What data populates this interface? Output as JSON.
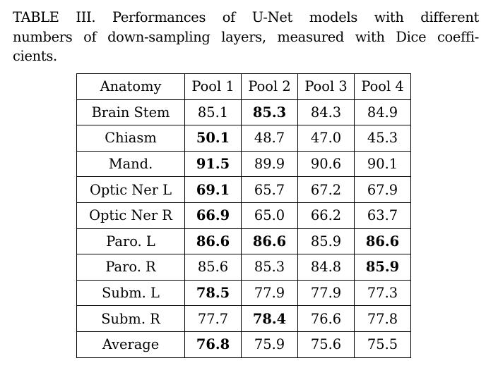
{
  "caption": {
    "line1": "TABLE III. Performances of U-Net models with different",
    "line2": "numbers of down-sampling layers, measured with Dice coeffi-",
    "line3": "cients."
  },
  "table": {
    "headers": [
      "Anatomy",
      "Pool 1",
      "Pool 2",
      "Pool 3",
      "Pool 4"
    ],
    "rows": [
      {
        "label": "Brain Stem",
        "values": [
          "85.1",
          "85.3",
          "84.3",
          "84.9"
        ],
        "bold": [
          false,
          true,
          false,
          false
        ]
      },
      {
        "label": "Chiasm",
        "values": [
          "50.1",
          "48.7",
          "47.0",
          "45.3"
        ],
        "bold": [
          true,
          false,
          false,
          false
        ]
      },
      {
        "label": "Mand.",
        "values": [
          "91.5",
          "89.9",
          "90.6",
          "90.1"
        ],
        "bold": [
          true,
          false,
          false,
          false
        ]
      },
      {
        "label": "Optic Ner L",
        "values": [
          "69.1",
          "65.7",
          "67.2",
          "67.9"
        ],
        "bold": [
          true,
          false,
          false,
          false
        ]
      },
      {
        "label": "Optic Ner R",
        "values": [
          "66.9",
          "65.0",
          "66.2",
          "63.7"
        ],
        "bold": [
          true,
          false,
          false,
          false
        ]
      },
      {
        "label": "Paro. L",
        "values": [
          "86.6",
          "86.6",
          "85.9",
          "86.6"
        ],
        "bold": [
          true,
          true,
          false,
          true
        ]
      },
      {
        "label": "Paro. R",
        "values": [
          "85.6",
          "85.3",
          "84.8",
          "85.9"
        ],
        "bold": [
          false,
          false,
          false,
          true
        ]
      },
      {
        "label": "Subm. L",
        "values": [
          "78.5",
          "77.9",
          "77.9",
          "77.3"
        ],
        "bold": [
          true,
          false,
          false,
          false
        ]
      },
      {
        "label": "Subm. R",
        "values": [
          "77.7",
          "78.4",
          "76.6",
          "77.8"
        ],
        "bold": [
          false,
          true,
          false,
          false
        ]
      },
      {
        "label": "Average",
        "values": [
          "76.8",
          "75.9",
          "75.6",
          "75.5"
        ],
        "bold": [
          true,
          false,
          false,
          false
        ]
      }
    ]
  }
}
